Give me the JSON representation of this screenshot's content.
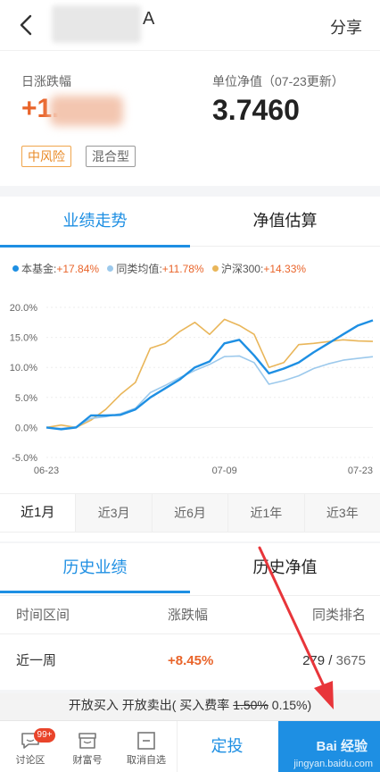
{
  "header": {
    "title_suffix": "A",
    "share_label": "分享"
  },
  "summary": {
    "daily_change_label": "日涨跌幅",
    "daily_change_value": "+1.",
    "nav_label": "单位净值（07-23更新）",
    "nav_value": "3.7460",
    "tags": [
      "中风险",
      "混合型"
    ]
  },
  "performance": {
    "tabs": [
      "业绩走势",
      "净值估算"
    ],
    "legend": [
      {
        "name": "本基金",
        "value": "+17.84%",
        "color": "#1e8fe3"
      },
      {
        "name": "同类均值",
        "value": "+11.78%",
        "color": "#9cc9ec"
      },
      {
        "name": "沪深300",
        "value": "+14.33%",
        "color": "#e9b65a"
      }
    ],
    "periods": [
      "近1月",
      "近3月",
      "近6月",
      "近1年",
      "近3年"
    ],
    "active_period": "近1月"
  },
  "chart_data": {
    "type": "line",
    "x": [
      "06-23",
      "06-24",
      "06-25",
      "06-26",
      "06-29",
      "06-30",
      "07-01",
      "07-02",
      "07-03",
      "07-06",
      "07-07",
      "07-08",
      "07-09",
      "07-10",
      "07-13",
      "07-14",
      "07-15",
      "07-16",
      "07-17",
      "07-20",
      "07-21",
      "07-22",
      "07-23"
    ],
    "x_tick_labels": [
      "06-23",
      "07-09",
      "07-23"
    ],
    "y_tick_labels": [
      "20.0%",
      "15.0%",
      "10.0%",
      "5.0%",
      "0.0%",
      "-5.0%"
    ],
    "ylim": [
      -5,
      20
    ],
    "series": [
      {
        "name": "本基金",
        "color": "#1e8fe3",
        "values": [
          0.0,
          -0.3,
          0.0,
          2.0,
          2.0,
          2.1,
          3.0,
          5.0,
          6.5,
          8.0,
          10.0,
          11.0,
          14.0,
          14.6,
          12.0,
          9.0,
          9.8,
          10.8,
          12.5,
          14.0,
          15.5,
          17.0,
          17.84
        ]
      },
      {
        "name": "同类均值",
        "color": "#9cc9ec",
        "values": [
          0.0,
          -0.2,
          0.1,
          1.5,
          1.8,
          2.3,
          3.2,
          5.8,
          7.0,
          8.3,
          9.5,
          10.5,
          11.8,
          11.9,
          10.8,
          7.2,
          7.8,
          8.6,
          9.8,
          10.6,
          11.2,
          11.5,
          11.78
        ]
      },
      {
        "name": "沪深300",
        "color": "#e9b65a",
        "values": [
          0.0,
          0.4,
          0.0,
          1.2,
          3.0,
          5.5,
          7.5,
          13.2,
          14.0,
          16.0,
          17.5,
          15.5,
          18.0,
          17.0,
          15.5,
          10.0,
          10.8,
          13.8,
          14.0,
          14.3,
          14.6,
          14.4,
          14.33
        ]
      }
    ]
  },
  "history": {
    "tabs": [
      "历史业绩",
      "历史净值"
    ],
    "columns": [
      "时间区间",
      "涨跌幅",
      "同类排名"
    ],
    "rows": [
      {
        "period": "近一周",
        "change": "+8.45%",
        "rank": "279",
        "rank_total": "3675"
      }
    ]
  },
  "open_info": {
    "text": "开放买入 开放卖出( 买入费率",
    "old_rate": "1.50%",
    "new_rate": "0.15%",
    "close": ")"
  },
  "bottom_bar": {
    "forum_label": "讨论区",
    "forum_badge": "99+",
    "wealth_label": "财富号",
    "unwatch_label": "取消自选",
    "dingtou_label": "定投",
    "watermark_top": "Bai 经验",
    "watermark_bottom": "jingyan.baidu.com"
  }
}
